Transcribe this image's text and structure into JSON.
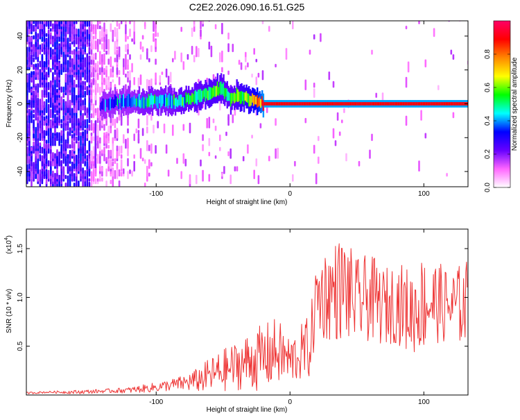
{
  "title": "C2E2.2026.090.16.51.G25",
  "colorbar": {
    "label": "Normalized spectral amplitude",
    "ticks": [
      "0.0",
      "0.2",
      "0.4",
      "0.6",
      "0.8"
    ],
    "tick_values": [
      0.0,
      0.2,
      0.4,
      0.6,
      0.8
    ],
    "range": [
      0,
      1
    ],
    "stops": [
      "#ffffff",
      "#ff66ff",
      "#6600ff",
      "#0000ff",
      "#00ffff",
      "#00ff00",
      "#ffff00",
      "#ff8800",
      "#ff0000",
      "#ff0066"
    ]
  },
  "chart_data": [
    {
      "type": "heatmap",
      "title": "C2E2.2026.090.16.51.G25",
      "xlabel": "Height of straight line (km)",
      "ylabel": "Frequency (Hz)",
      "xlim": [
        -197,
        133
      ],
      "ylim": [
        -49,
        49
      ],
      "x_ticks": [
        -100,
        0,
        100
      ],
      "x_tick_labels": [
        "-100",
        "0",
        "100"
      ],
      "y_ticks": [
        -40,
        -20,
        0,
        20,
        40
      ],
      "y_tick_labels": [
        "-40",
        "-20",
        "0",
        "20",
        "40"
      ],
      "ridge": {
        "x": [
          -140,
          -130,
          -120,
          -110,
          -100,
          -90,
          -80,
          -70,
          -60,
          -55,
          -50,
          -45,
          -40,
          -35,
          -30,
          -25,
          -20,
          -10,
          0,
          10,
          20,
          40,
          60,
          80,
          100,
          120,
          133
        ],
        "y": [
          0,
          1,
          2,
          1,
          2,
          1,
          2,
          4,
          6,
          8,
          8,
          3,
          5,
          3,
          2,
          1,
          0,
          0,
          0,
          0,
          0,
          0,
          0,
          0,
          0,
          0,
          0
        ],
        "amplitude": [
          0.3,
          0.35,
          0.4,
          0.45,
          0.45,
          0.45,
          0.5,
          0.5,
          0.55,
          0.55,
          0.5,
          0.5,
          0.55,
          0.6,
          0.65,
          0.75,
          0.9,
          0.9,
          0.9,
          0.9,
          0.9,
          0.9,
          0.9,
          0.9,
          0.9,
          0.9,
          0.9
        ]
      },
      "colorbar_label": "Normalized spectral amplitude"
    },
    {
      "type": "line",
      "xlabel": "Height of straight line (km)",
      "ylabel": "SNR (10 * v/v)",
      "y_exponent_label": "(x10",
      "y_exponent": "4",
      "xlim": [
        -197,
        133
      ],
      "ylim": [
        0,
        1.7
      ],
      "x_ticks": [
        -100,
        0,
        100
      ],
      "x_tick_labels": [
        "-100",
        "0",
        "100"
      ],
      "y_ticks": [
        0.5,
        1.0,
        1.5
      ],
      "y_tick_labels": [
        "0.5",
        "1.0",
        "1.5"
      ],
      "series": [
        {
          "name": "SNR",
          "color": "#ee3333",
          "x": [
            -197,
            -180,
            -160,
            -140,
            -120,
            -100,
            -90,
            -80,
            -70,
            -60,
            -50,
            -40,
            -30,
            -20,
            -10,
            -5,
            0,
            10,
            15,
            18,
            20,
            30,
            40,
            50,
            60,
            70,
            80,
            90,
            100,
            110,
            120,
            133
          ],
          "y": [
            0.02,
            0.03,
            0.03,
            0.04,
            0.05,
            0.08,
            0.1,
            0.12,
            0.15,
            0.2,
            0.25,
            0.3,
            0.35,
            0.38,
            0.45,
            0.4,
            0.35,
            0.45,
            0.5,
            0.8,
            1.0,
            1.05,
            1.1,
            0.95,
            1.0,
            0.9,
            0.95,
            0.85,
            0.95,
            0.95,
            0.9,
            0.95
          ],
          "spread": [
            0.01,
            0.01,
            0.02,
            0.02,
            0.03,
            0.05,
            0.06,
            0.08,
            0.12,
            0.18,
            0.22,
            0.25,
            0.3,
            0.35,
            0.35,
            0.3,
            0.25,
            0.3,
            0.35,
            0.35,
            0.45,
            0.5,
            0.55,
            0.45,
            0.45,
            0.4,
            0.42,
            0.45,
            0.5,
            0.42,
            0.38,
            0.45
          ]
        }
      ]
    }
  ]
}
